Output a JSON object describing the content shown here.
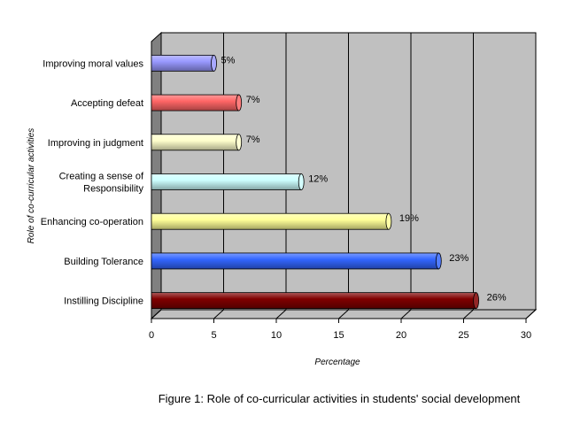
{
  "chart_data": {
    "type": "bar",
    "orientation": "horizontal",
    "style": "3d-cylinder",
    "categories": [
      "Improving moral values",
      "Accepting defeat",
      "Improving in judgment",
      "Creating a sense of Responsibility",
      "Enhancing co-operation",
      "Building Tolerance",
      "Instilling Discipline"
    ],
    "category_lines": [
      [
        "Improving moral values"
      ],
      [
        "Accepting defeat"
      ],
      [
        "Improving in judgment"
      ],
      [
        "Creating a sense of",
        "Responsibility"
      ],
      [
        "Enhancing co-operation"
      ],
      [
        "Building Tolerance"
      ],
      [
        "Instilling Discipline"
      ]
    ],
    "values": [
      5,
      7,
      7,
      12,
      19,
      23,
      26
    ],
    "value_labels": [
      "5%",
      "7%",
      "7%",
      "12%",
      "19%",
      "23%",
      "26%"
    ],
    "colors": [
      "#9999ff",
      "#ff6666",
      "#ffffcc",
      "#ccffff",
      "#ffff99",
      "#3366ff",
      "#800000"
    ],
    "xlabel": "Percentage",
    "ylabel": "Role of co-curricular activities",
    "xlim": [
      0,
      30
    ],
    "xticks": [
      0,
      5,
      10,
      15,
      20,
      25,
      30
    ],
    "grid": true,
    "legend": "none",
    "caption": "Figure 1: Role of co-curricular activities in students' social development"
  }
}
